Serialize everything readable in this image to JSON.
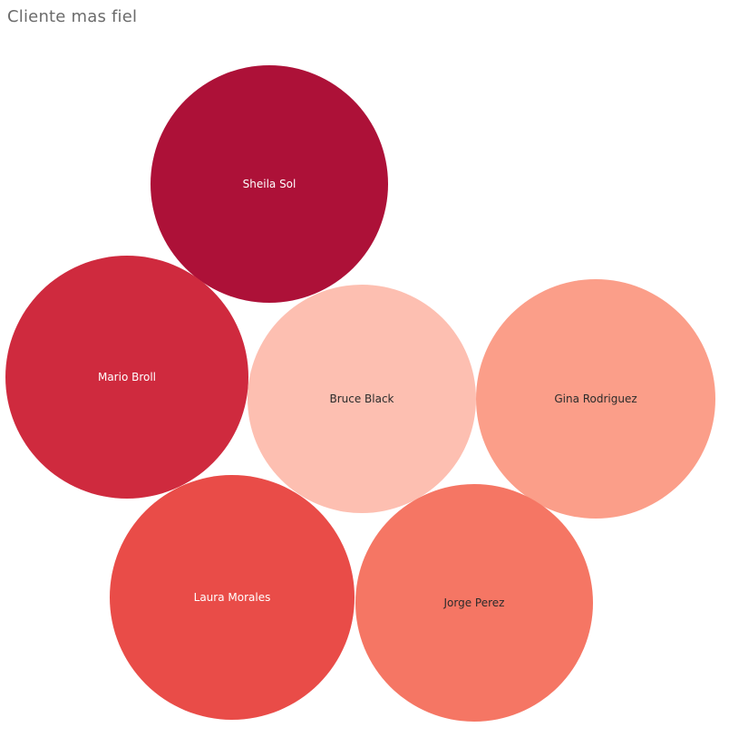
{
  "page": {
    "title": "Cliente mas fiel"
  },
  "chart_data": {
    "type": "bubble",
    "title": "Cliente mas fiel",
    "legend": "none",
    "bubbles": [
      {
        "name": "Sheila Sol",
        "color": "#ad1138",
        "label_color": "#ffffff"
      },
      {
        "name": "Mario Broll",
        "color": "#cf2a3e",
        "label_color": "#ffffff"
      },
      {
        "name": "Bruce Black",
        "color": "#fdbfb1",
        "label_color": "#2b2b2b"
      },
      {
        "name": "Gina Rodriguez",
        "color": "#fb9e89",
        "label_color": "#2b2b2b"
      },
      {
        "name": "Laura Morales",
        "color": "#e94c48",
        "label_color": "#ffffff"
      },
      {
        "name": "Jorge Perez",
        "color": "#f57664",
        "label_color": "#2b2b2b"
      }
    ]
  }
}
